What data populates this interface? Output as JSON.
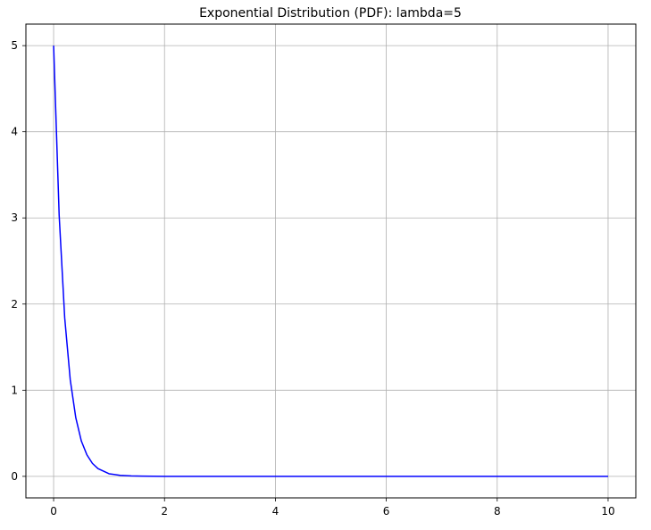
{
  "chart_data": {
    "type": "line",
    "title": "Exponential Distribution (PDF): lambda=5",
    "xlabel": "",
    "ylabel": "",
    "xlim": [
      -0.5,
      10.5
    ],
    "ylim": [
      -0.25,
      5.25
    ],
    "xticks": [
      0,
      2,
      4,
      6,
      8,
      10
    ],
    "yticks": [
      0,
      1,
      2,
      3,
      4,
      5
    ],
    "xtick_labels": [
      "0",
      "2",
      "4",
      "6",
      "8",
      "10"
    ],
    "ytick_labels": [
      "0",
      "1",
      "2",
      "3",
      "4",
      "5"
    ],
    "grid": true,
    "line_color": "#0000ff",
    "series": [
      {
        "x": [
          0,
          0.1,
          0.2,
          0.3,
          0.4,
          0.5,
          0.6,
          0.7,
          0.8,
          0.9,
          1.0,
          1.2,
          1.4,
          1.6,
          1.8,
          2.0,
          3,
          4,
          5,
          6,
          7,
          8,
          9,
          10
        ],
        "values": [
          5.0,
          3.03,
          1.84,
          1.12,
          0.68,
          0.41,
          0.25,
          0.15,
          0.09,
          0.06,
          0.03,
          0.012,
          0.005,
          0.002,
          0.0006,
          0.0002,
          0,
          0,
          0,
          0,
          0,
          0,
          0,
          0
        ]
      }
    ]
  }
}
